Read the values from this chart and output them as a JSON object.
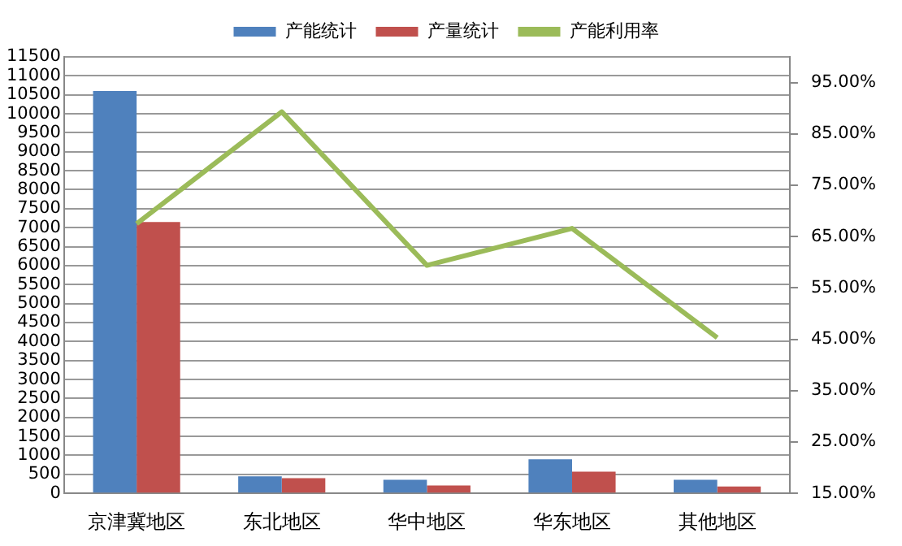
{
  "chart_data": {
    "type": "bar",
    "categories": [
      "京津冀地区",
      "东北地区",
      "华中地区",
      "华东地区",
      "其他地区"
    ],
    "series": [
      {
        "name": "产能统计",
        "color": "#4f81bd",
        "values": [
          10600,
          450,
          360,
          900,
          360
        ]
      },
      {
        "name": "产量统计",
        "color": "#c0504d",
        "values": [
          7150,
          400,
          210,
          570,
          180
        ]
      },
      {
        "name": "产能利用率",
        "color": "#9bbb59",
        "type": "line",
        "axis": "y2",
        "values": [
          67.5,
          89.3,
          59.4,
          66.6,
          45.3
        ]
      }
    ],
    "ylim": [
      0,
      11500
    ],
    "yticks": [
      0,
      500,
      1000,
      1500,
      2000,
      2500,
      3000,
      3500,
      4000,
      4500,
      5000,
      5500,
      6000,
      6500,
      7000,
      7500,
      8000,
      8500,
      9000,
      9500,
      10000,
      10500,
      11000,
      11500
    ],
    "y2lim": [
      15,
      100
    ],
    "y2ticks": [
      {
        "value": 15,
        "label": "15.00%"
      },
      {
        "value": 25,
        "label": "25.00%"
      },
      {
        "value": 35,
        "label": "35.00%"
      },
      {
        "value": 45,
        "label": "45.00%"
      },
      {
        "value": 55,
        "label": "55.00%"
      },
      {
        "value": 65,
        "label": "65.00%"
      },
      {
        "value": 75,
        "label": "75.00%"
      },
      {
        "value": 85,
        "label": "85.00%"
      },
      {
        "value": 95,
        "label": "95.00%"
      }
    ],
    "grid": "y",
    "legend": "top",
    "marker": "none"
  }
}
